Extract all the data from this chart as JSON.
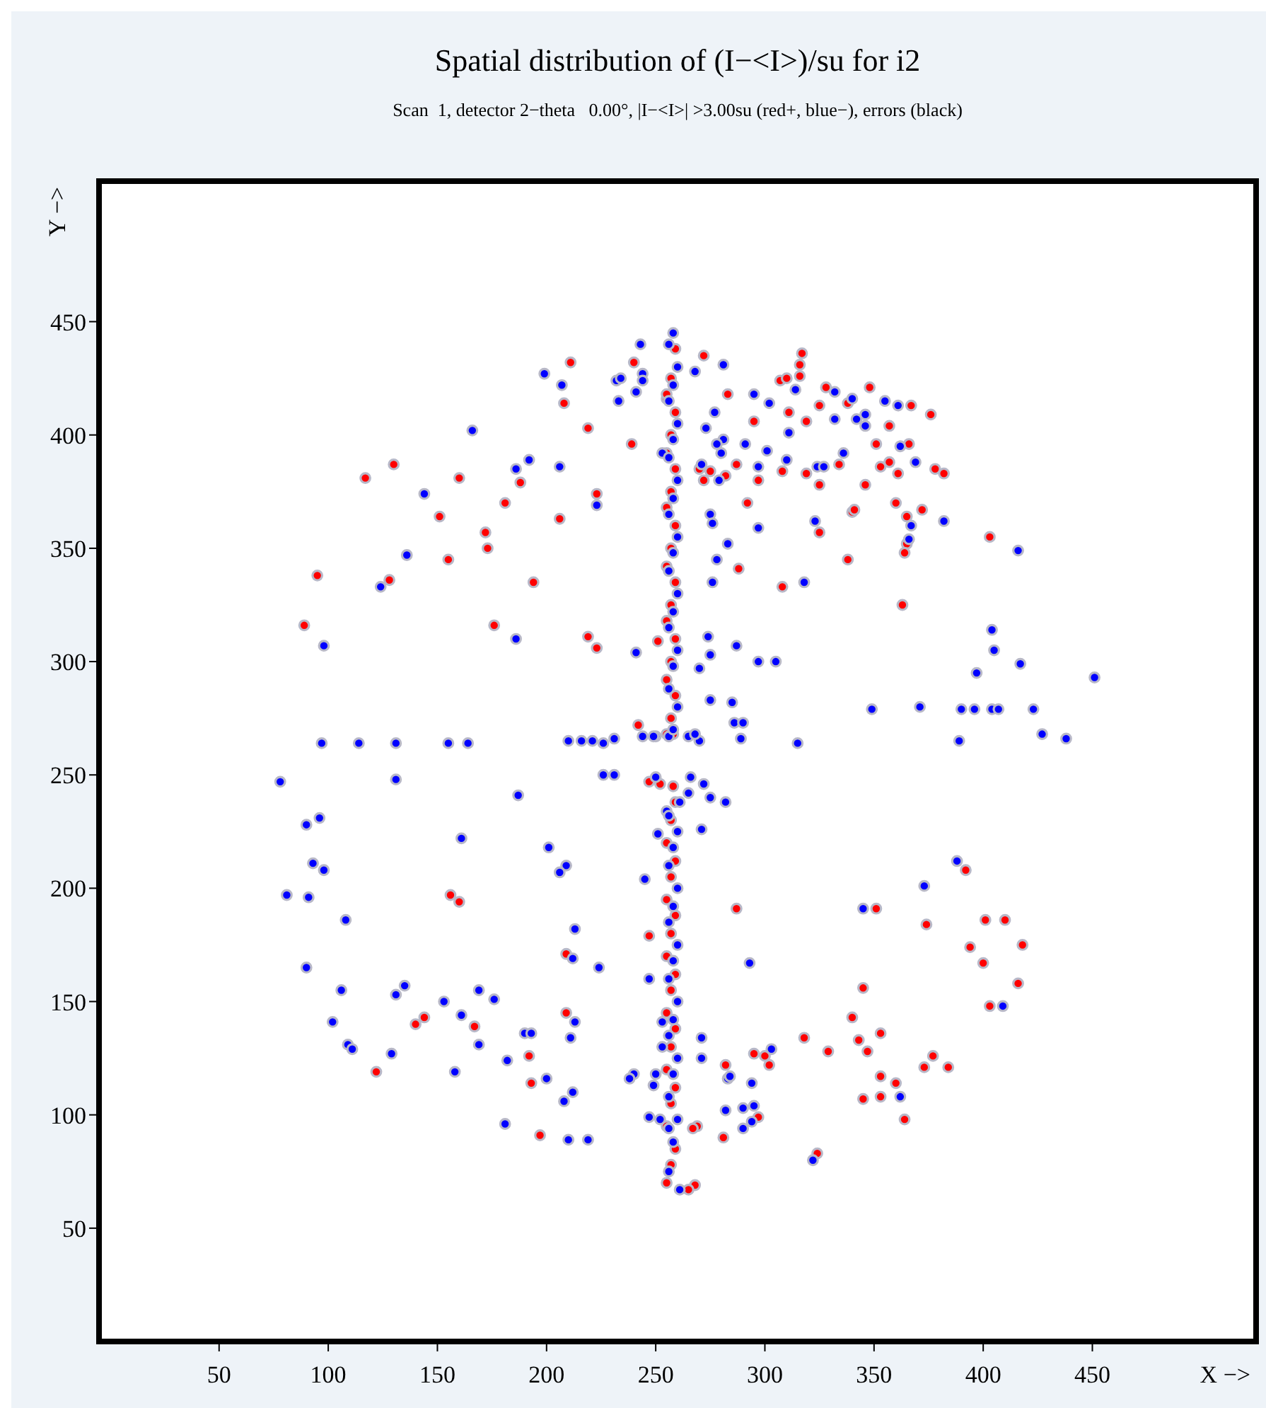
{
  "chart_data": {
    "type": "scatter",
    "title": "Spatial distribution of (I−<I>)/su for i2",
    "subtitle": "Scan  1, detector 2−theta   0.00°, |I−<I>| >3.00su (red+, blue−), errors (black)",
    "xlabel": "X −>",
    "ylabel": "Y −>",
    "xlim": [
      -5,
      525
    ],
    "ylim": [
      0,
      512
    ],
    "xticks": [
      50,
      100,
      150,
      200,
      250,
      300,
      350,
      400,
      450
    ],
    "yticks": [
      50,
      100,
      150,
      200,
      250,
      300,
      350,
      400,
      450
    ],
    "grid": false,
    "marker": "circle",
    "series": [
      {
        "color": "#ff0000",
        "x": [
          272,
          317,
          316,
          316,
          307,
          310,
          328,
          348,
          283,
          255,
          325,
          338,
          367,
          376,
          311,
          295,
          319,
          357,
          351,
          366,
          357,
          353,
          361,
          378,
          382,
          334,
          319,
          308,
          297,
          287,
          270,
          275,
          272,
          282,
          325,
          346,
          292,
          360,
          340,
          341,
          372,
          365,
          325,
          365,
          364,
          403,
          338,
          288,
          308,
          363,
          211,
          240,
          208,
          219,
          239,
          130,
          117,
          160,
          188,
          181,
          223,
          206,
          151,
          172,
          173,
          155,
          95,
          128,
          194,
          89,
          176,
          219,
          223,
          251,
          242,
          247,
          252,
          258,
          156,
          160,
          258,
          392,
          287,
          351,
          247,
          209,
          140,
          144,
          167,
          209,
          122,
          192,
          193,
          197,
          374,
          401,
          410,
          394,
          418,
          400,
          345,
          416,
          403,
          340,
          353,
          343,
          347,
          318,
          329,
          295,
          300,
          302,
          282,
          377,
          373,
          384,
          353,
          360,
          345,
          353,
          364,
          281,
          324,
          269,
          267,
          268,
          265,
          297,
          255,
          257,
          259,
          255,
          257,
          259,
          255,
          257,
          259,
          255,
          257,
          259,
          255,
          257,
          259,
          255,
          257,
          259,
          255,
          257,
          259,
          255,
          257,
          259,
          255,
          257,
          259,
          255,
          257,
          259,
          255,
          257,
          259,
          255,
          257,
          259,
          255,
          257,
          259,
          255,
          257,
          259
        ],
        "values": [
          435,
          436,
          431,
          426,
          424,
          425,
          421,
          421,
          418,
          416,
          413,
          414,
          413,
          409,
          410,
          406,
          406,
          404,
          396,
          396,
          388,
          386,
          383,
          385,
          383,
          387,
          383,
          384,
          380,
          387,
          385,
          384,
          380,
          382,
          378,
          378,
          370,
          370,
          366,
          367,
          367,
          364,
          357,
          352,
          348,
          355,
          345,
          341,
          333,
          325,
          432,
          432,
          414,
          403,
          396,
          387,
          381,
          381,
          379,
          370,
          374,
          363,
          364,
          357,
          350,
          345,
          338,
          336,
          335,
          316,
          316,
          311,
          306,
          309,
          272,
          247,
          246,
          245,
          197,
          194,
          268,
          208,
          191,
          191,
          179,
          171,
          140,
          143,
          139,
          145,
          119,
          126,
          114,
          91,
          184,
          186,
          186,
          174,
          175,
          167,
          156,
          158,
          148,
          143,
          136,
          133,
          128,
          134,
          128,
          127,
          126,
          122,
          122,
          126,
          121,
          121,
          117,
          114,
          107,
          108,
          98,
          90,
          83,
          95,
          94,
          69,
          67,
          99,
          70,
          78,
          85,
          95,
          105,
          112,
          120,
          130,
          138,
          145,
          155,
          162,
          170,
          180,
          188,
          195,
          205,
          212,
          220,
          230,
          238,
          268,
          275,
          285,
          292,
          300,
          310,
          318,
          325,
          335,
          342,
          350,
          360,
          368,
          375,
          385,
          392,
          400,
          410,
          418,
          425,
          438
        ]
      },
      {
        "color": "#0000ff",
        "x": [
          281,
          268,
          295,
          302,
          314,
          332,
          340,
          355,
          361,
          346,
          342,
          346,
          332,
          277,
          273,
          311,
          281,
          278,
          291,
          301,
          280,
          253,
          336,
          362,
          369,
          310,
          271,
          297,
          324,
          327,
          279,
          275,
          276,
          318,
          323,
          297,
          367,
          366,
          382,
          283,
          278,
          276,
          416,
          243,
          199,
          207,
          232,
          234,
          244,
          244,
          241,
          233,
          166,
          192,
          186,
          206,
          144,
          223,
          136,
          124,
          98,
          186,
          241,
          97,
          114,
          131,
          155,
          164,
          210,
          216,
          221,
          226,
          231,
          244,
          250,
          256,
          78,
          131,
          226,
          231,
          250,
          187,
          255,
          251,
          96,
          90,
          161,
          201,
          93,
          98,
          209,
          206,
          245,
          81,
          91,
          274,
          287,
          275,
          297,
          305,
          270,
          275,
          285,
          286,
          290,
          404,
          405,
          417,
          397,
          451,
          349,
          371,
          390,
          396,
          404,
          407,
          423,
          427,
          438,
          389,
          315,
          289,
          270,
          265,
          268,
          249,
          266,
          272,
          275,
          282,
          265,
          261,
          271,
          388,
          373,
          345,
          108,
          213,
          90,
          212,
          224,
          247,
          106,
          131,
          135,
          153,
          169,
          176,
          161,
          102,
          213,
          211,
          190,
          193,
          253,
          253,
          109,
          111,
          129,
          169,
          182,
          158,
          200,
          240,
          238,
          250,
          249,
          212,
          208,
          247,
          252,
          256,
          181,
          210,
          219,
          293,
          409,
          271,
          271,
          303,
          283,
          284,
          294,
          362,
          282,
          290,
          295,
          290,
          294,
          322,
          261,
          256,
          258,
          260,
          256,
          258,
          260,
          256,
          258,
          260,
          256,
          258,
          260,
          256,
          258,
          260,
          256,
          258,
          260,
          256,
          258,
          260,
          256,
          258,
          260,
          256,
          258,
          260,
          256,
          258,
          260,
          256,
          258,
          260,
          256,
          258,
          260,
          256,
          258,
          260,
          256,
          258
        ],
        "values": [
          431,
          428,
          418,
          414,
          420,
          419,
          416,
          415,
          413,
          409,
          407,
          404,
          407,
          410,
          403,
          401,
          398,
          396,
          396,
          393,
          392,
          392,
          392,
          395,
          388,
          389,
          387,
          386,
          386,
          386,
          380,
          365,
          361,
          335,
          362,
          359,
          360,
          354,
          362,
          352,
          345,
          335,
          349,
          440,
          427,
          422,
          424,
          425,
          427,
          424,
          419,
          415,
          402,
          389,
          385,
          386,
          374,
          369,
          347,
          333,
          307,
          310,
          304,
          264,
          264,
          264,
          264,
          264,
          265,
          265,
          265,
          264,
          266,
          267,
          267,
          267,
          247,
          248,
          250,
          250,
          249,
          241,
          234,
          224,
          231,
          228,
          222,
          218,
          211,
          208,
          210,
          207,
          204,
          197,
          196,
          311,
          307,
          303,
          300,
          300,
          297,
          283,
          282,
          273,
          273,
          314,
          305,
          299,
          295,
          293,
          279,
          280,
          279,
          279,
          279,
          279,
          279,
          268,
          266,
          265,
          264,
          266,
          265,
          267,
          268,
          267,
          249,
          246,
          240,
          238,
          242,
          238,
          226,
          212,
          201,
          191,
          186,
          182,
          165,
          169,
          165,
          160,
          155,
          153,
          157,
          150,
          155,
          151,
          144,
          141,
          141,
          134,
          136,
          136,
          141,
          130,
          131,
          129,
          127,
          131,
          124,
          119,
          116,
          118,
          116,
          118,
          113,
          110,
          106,
          99,
          98,
          94,
          96,
          89,
          89,
          167,
          148,
          134,
          125,
          129,
          116,
          117,
          114,
          108,
          102,
          103,
          104,
          94,
          97,
          80,
          67,
          75,
          88,
          98,
          108,
          118,
          125,
          135,
          142,
          150,
          160,
          168,
          175,
          185,
          192,
          200,
          210,
          218,
          225,
          232,
          270,
          280,
          288,
          298,
          305,
          315,
          322,
          330,
          340,
          348,
          355,
          365,
          372,
          380,
          390,
          398,
          405,
          415,
          422,
          430,
          440,
          445
        ]
      }
    ]
  }
}
